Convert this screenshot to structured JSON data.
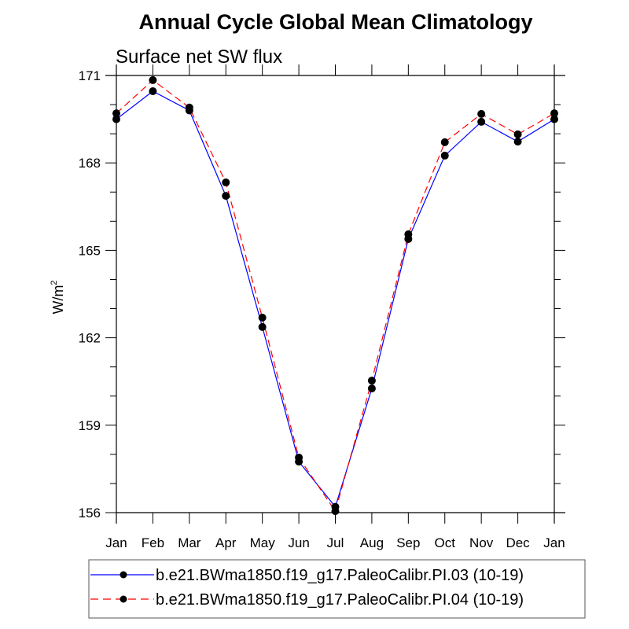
{
  "chart_data": {
    "type": "line",
    "title": "Annual Cycle Global Mean Climatology",
    "subtitle": "Surface net SW flux",
    "xlabel": "",
    "ylabel": "W/m",
    "ylabel_superscript": "2",
    "categories": [
      "Jan",
      "Feb",
      "Mar",
      "Apr",
      "May",
      "Jun",
      "Jul",
      "Aug",
      "Sep",
      "Oct",
      "Nov",
      "Dec",
      "Jan"
    ],
    "ylim": [
      156,
      171
    ],
    "yticks_major": [
      156,
      159,
      162,
      165,
      168,
      171
    ],
    "yticks_minor_step": 1,
    "grid": false,
    "legend_position": "bottom",
    "series": [
      {
        "name": "b.e21.BWma1850.f19_g17.PaleoCalibr.PI.03 (10-19)",
        "color": "#0000ff",
        "dash": "solid",
        "marker": "circle",
        "values": [
          169.5,
          170.46,
          169.8,
          166.87,
          162.37,
          157.75,
          156.2,
          160.26,
          165.39,
          168.25,
          169.41,
          168.73,
          169.5
        ]
      },
      {
        "name": "b.e21.BWma1850.f19_g17.PaleoCalibr.PI.04 (10-19)",
        "color": "#ff0000",
        "dash": "dashed",
        "marker": "circle",
        "values": [
          169.7,
          170.84,
          169.9,
          167.33,
          162.69,
          157.89,
          156.05,
          160.53,
          165.55,
          168.71,
          169.68,
          168.98,
          169.7
        ]
      }
    ]
  }
}
